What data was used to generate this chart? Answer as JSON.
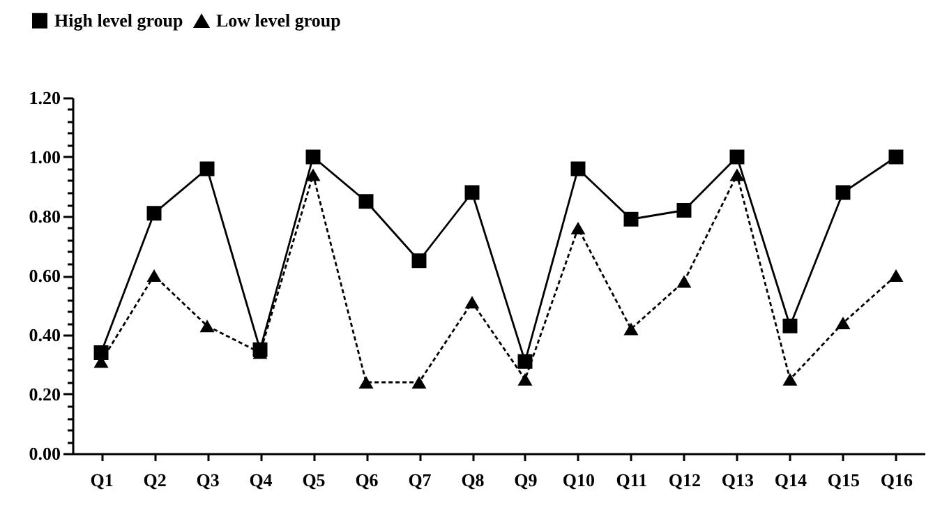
{
  "chart_data": {
    "type": "line",
    "categories": [
      "Q1",
      "Q2",
      "Q3",
      "Q4",
      "Q5",
      "Q6",
      "Q7",
      "Q8",
      "Q9",
      "Q10",
      "Q11",
      "Q12",
      "Q13",
      "Q14",
      "Q15",
      "Q16"
    ],
    "series": [
      {
        "name": "High level group",
        "color": "#000000",
        "marker": "square",
        "line_style": "solid",
        "values": [
          0.34,
          0.81,
          0.96,
          0.35,
          1.0,
          0.85,
          0.65,
          0.88,
          0.31,
          0.96,
          0.79,
          0.82,
          1.0,
          0.43,
          0.88,
          1.0
        ]
      },
      {
        "name": "Low level group",
        "color": "#000000",
        "marker": "triangle",
        "line_style": "dashed",
        "values": [
          0.31,
          0.6,
          0.43,
          0.34,
          0.94,
          0.24,
          0.24,
          0.51,
          0.25,
          0.76,
          0.42,
          0.58,
          0.94,
          0.25,
          0.44,
          0.6
        ]
      }
    ],
    "ylim": [
      0,
      1.2
    ],
    "yticks": [
      {
        "value": 0,
        "label": "0.00"
      },
      {
        "value": 0.04,
        "label": null
      },
      {
        "value": 0.08,
        "label": null
      },
      {
        "value": 0.12,
        "label": null
      },
      {
        "value": 0.16,
        "label": null
      },
      {
        "value": 0.2,
        "label": "0.20"
      },
      {
        "value": 0.24,
        "label": null
      },
      {
        "value": 0.28,
        "label": null
      },
      {
        "value": 0.32,
        "label": null
      },
      {
        "value": 0.36,
        "label": null
      },
      {
        "value": 0.4,
        "label": "0.40"
      },
      {
        "value": 0.44,
        "label": null
      },
      {
        "value": 0.48,
        "label": null
      },
      {
        "value": 0.52,
        "label": null
      },
      {
        "value": 0.56,
        "label": null
      },
      {
        "value": 0.6,
        "label": "0.60"
      },
      {
        "value": 0.64,
        "label": null
      },
      {
        "value": 0.68,
        "label": null
      },
      {
        "value": 0.72,
        "label": null
      },
      {
        "value": 0.76,
        "label": null
      },
      {
        "value": 0.8,
        "label": "0.80"
      },
      {
        "value": 0.84,
        "label": null
      },
      {
        "value": 0.88,
        "label": null
      },
      {
        "value": 0.92,
        "label": null
      },
      {
        "value": 0.96,
        "label": null
      },
      {
        "value": 1,
        "label": "1.00"
      },
      {
        "value": 1.04,
        "label": null
      },
      {
        "value": 1.08,
        "label": null
      },
      {
        "value": 1.12,
        "label": null
      },
      {
        "value": 1.16,
        "label": null
      },
      {
        "value": 1.2,
        "label": "1.20"
      }
    ],
    "grid": false,
    "legend": "top left"
  }
}
